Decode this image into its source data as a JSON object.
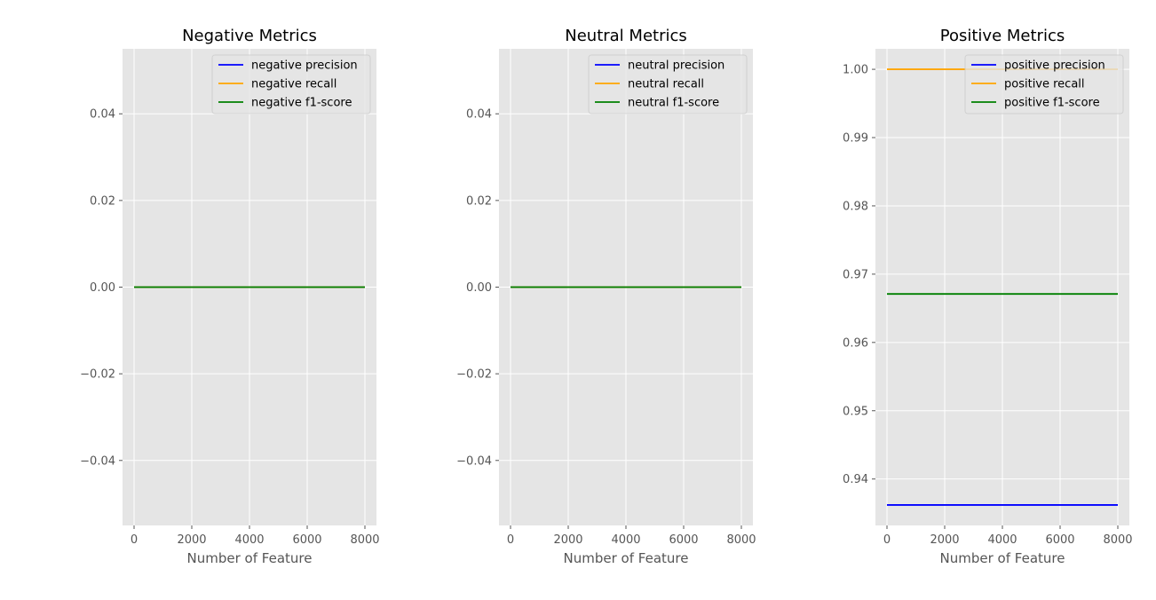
{
  "chart_data": [
    {
      "type": "line",
      "title": "Negative Metrics",
      "xlabel": "Number of Feature",
      "ylabel": "",
      "xlim": [
        -400,
        8400
      ],
      "ylim": [
        -0.055,
        0.055
      ],
      "xticks": [
        0,
        2000,
        4000,
        6000,
        8000
      ],
      "xtick_labels": [
        "0",
        "2000",
        "4000",
        "6000",
        "8000"
      ],
      "yticks": [
        -0.04,
        -0.02,
        0.0,
        0.02,
        0.04
      ],
      "ytick_labels": [
        "−0.04",
        "−0.02",
        "0.00",
        "0.02",
        "0.04"
      ],
      "legend_position": "upper-right",
      "grid": true,
      "series": [
        {
          "name": "negative precision",
          "color": "#0000ff",
          "x": [
            0,
            8000
          ],
          "y": [
            0.0,
            0.0
          ]
        },
        {
          "name": "negative recall",
          "color": "#ffa500",
          "x": [
            0,
            8000
          ],
          "y": [
            0.0,
            0.0
          ]
        },
        {
          "name": "negative f1-score",
          "color": "#008000",
          "x": [
            0,
            8000
          ],
          "y": [
            0.0,
            0.0
          ]
        }
      ]
    },
    {
      "type": "line",
      "title": "Neutral Metrics",
      "xlabel": "Number of Feature",
      "ylabel": "",
      "xlim": [
        -400,
        8400
      ],
      "ylim": [
        -0.055,
        0.055
      ],
      "xticks": [
        0,
        2000,
        4000,
        6000,
        8000
      ],
      "xtick_labels": [
        "0",
        "2000",
        "4000",
        "6000",
        "8000"
      ],
      "yticks": [
        -0.04,
        -0.02,
        0.0,
        0.02,
        0.04
      ],
      "ytick_labels": [
        "−0.04",
        "−0.02",
        "0.00",
        "0.02",
        "0.04"
      ],
      "legend_position": "upper-right",
      "grid": true,
      "series": [
        {
          "name": "neutral precision",
          "color": "#0000ff",
          "x": [
            0,
            8000
          ],
          "y": [
            0.0,
            0.0
          ]
        },
        {
          "name": "neutral recall",
          "color": "#ffa500",
          "x": [
            0,
            8000
          ],
          "y": [
            0.0,
            0.0
          ]
        },
        {
          "name": "neutral f1-score",
          "color": "#008000",
          "x": [
            0,
            8000
          ],
          "y": [
            0.0,
            0.0
          ]
        }
      ]
    },
    {
      "type": "line",
      "title": "Positive Metrics",
      "xlabel": "Number of Feature",
      "ylabel": "",
      "xlim": [
        -400,
        8400
      ],
      "ylim": [
        0.9332,
        1.003
      ],
      "xticks": [
        0,
        2000,
        4000,
        6000,
        8000
      ],
      "xtick_labels": [
        "0",
        "2000",
        "4000",
        "6000",
        "8000"
      ],
      "yticks": [
        0.94,
        0.95,
        0.96,
        0.97,
        0.98,
        0.99,
        1.0
      ],
      "ytick_labels": [
        "0.94",
        "0.95",
        "0.96",
        "0.97",
        "0.98",
        "0.99",
        "1.00"
      ],
      "legend_position": "upper-right",
      "grid": true,
      "series": [
        {
          "name": "positive precision",
          "color": "#0000ff",
          "x": [
            0,
            8000
          ],
          "y": [
            0.9362,
            0.9362
          ]
        },
        {
          "name": "positive recall",
          "color": "#ffa500",
          "x": [
            0,
            8000
          ],
          "y": [
            1.0,
            1.0
          ]
        },
        {
          "name": "positive f1-score",
          "color": "#008000",
          "x": [
            0,
            8000
          ],
          "y": [
            0.9671,
            0.9671
          ]
        }
      ]
    }
  ]
}
